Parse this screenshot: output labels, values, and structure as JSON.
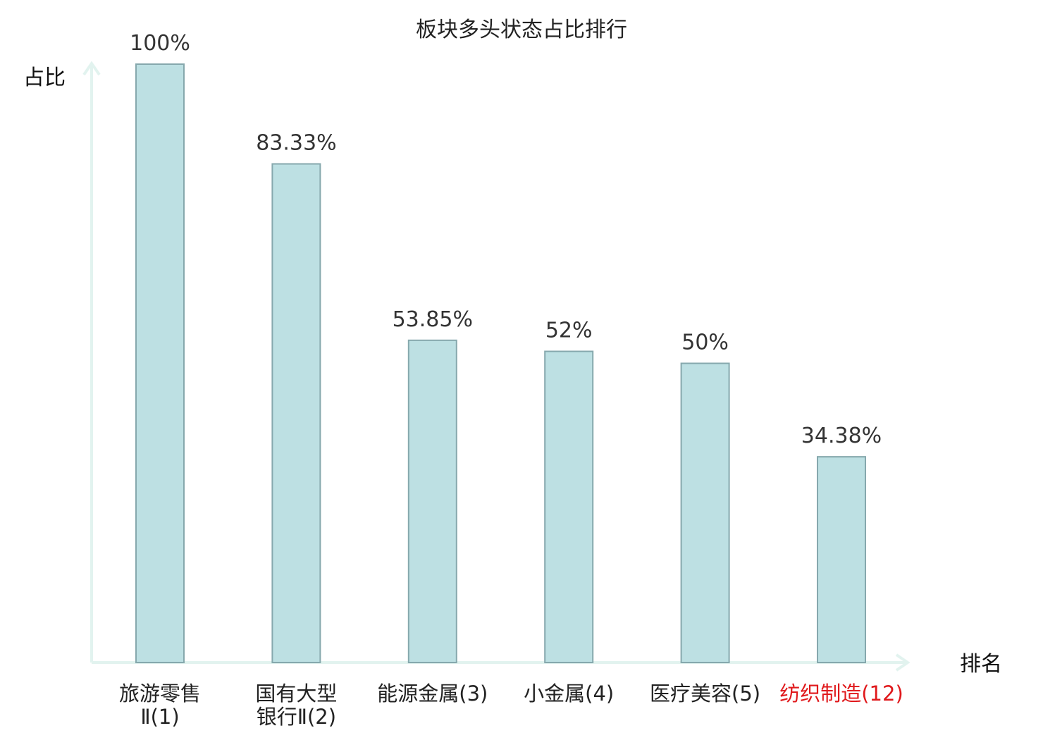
{
  "chart_data": {
    "type": "bar",
    "title": "板块多头状态占比排行",
    "ylabel": "占比",
    "xlabel": "排名",
    "ylim": [
      0,
      100
    ],
    "grid": false,
    "categories": [
      {
        "lines": [
          "旅游零售",
          "Ⅱ(1)"
        ]
      },
      {
        "lines": [
          "国有大型",
          "银行Ⅱ(2)"
        ]
      },
      {
        "lines": [
          "能源金属(3)"
        ]
      },
      {
        "lines": [
          "小金属(4)"
        ]
      },
      {
        "lines": [
          "医疗美容(5)"
        ]
      },
      {
        "lines": [
          "纺织制造(12)"
        ],
        "highlight": true
      }
    ],
    "values": [
      100,
      83.33,
      53.85,
      52,
      50,
      34.38
    ],
    "value_labels": [
      "100%",
      "83.33%",
      "53.85%",
      "52%",
      "50%",
      "34.38%"
    ],
    "colors": {
      "bar_fill": "#bde0e3",
      "bar_stroke": "#86a8ad",
      "axis": "#e2f3ef",
      "highlight": "#e0191c"
    }
  }
}
